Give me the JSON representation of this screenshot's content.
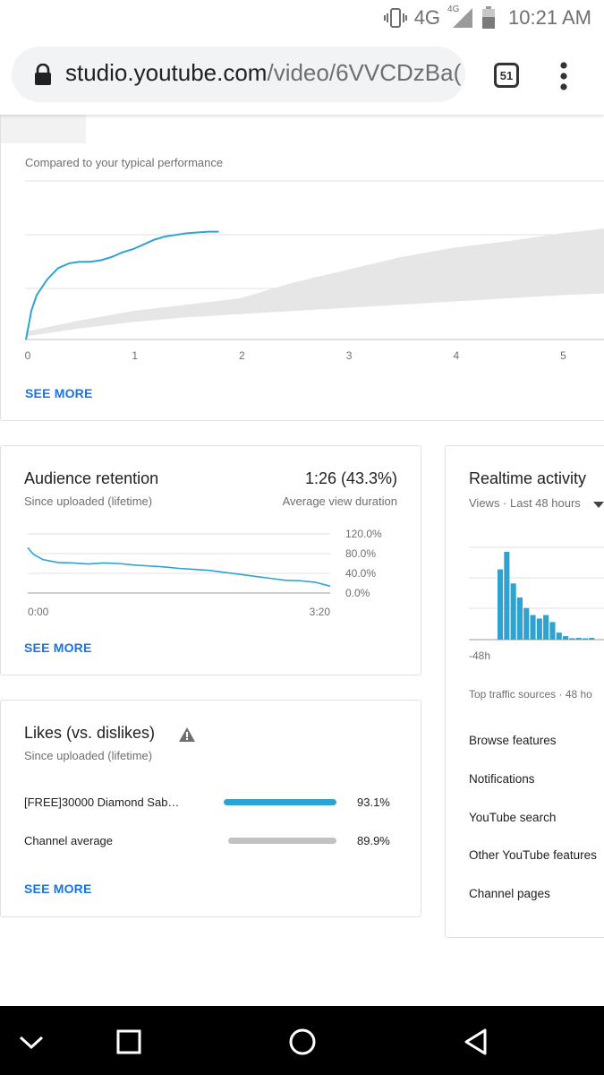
{
  "status_bar": {
    "network": "4G",
    "network_small": "4G",
    "time": "10:21 AM"
  },
  "browser": {
    "url_host": "studio.youtube.com",
    "url_path": "/video/6VVCDzBa(",
    "tab_count": "51"
  },
  "performance_card": {
    "subtitle": "Compared to your typical performance",
    "x_ticks": [
      "0",
      "1",
      "2",
      "3",
      "4",
      "5"
    ],
    "see_more": "SEE MORE"
  },
  "retention_card": {
    "title": "Audience retention",
    "subtitle": "Since uploaded (lifetime)",
    "value": "1:26 (43.3%)",
    "value_caption": "Average view duration",
    "y_ticks": [
      "120.0%",
      "80.0%",
      "40.0%",
      "0.0%"
    ],
    "x_start": "0:00",
    "x_end": "3:20",
    "see_more": "SEE MORE"
  },
  "likes_card": {
    "title": "Likes (vs. dislikes)",
    "warning_icon": "warning-icon",
    "subtitle": "Since uploaded (lifetime)",
    "rows": [
      {
        "label": "[FREE]30000 Diamond Sab…",
        "percent": "93.1%",
        "fill": 0.931,
        "color": "#2ea3d2"
      },
      {
        "label": "Channel average",
        "percent": "89.9%",
        "fill": 0.899,
        "color": "#c2c2c2"
      }
    ],
    "see_more": "SEE MORE"
  },
  "realtime_card": {
    "title": "Realtime activity",
    "subtitle": "Views · Last 48 hours",
    "x_start": "-48h",
    "traffic_title": "Top traffic sources · 48 ho",
    "traffic_sources": [
      "Browse features",
      "Notifications",
      "YouTube search",
      "Other YouTube features",
      "Channel pages"
    ]
  },
  "colors": {
    "accent": "#1a73e8",
    "series": "#2ea3d2",
    "band": "#e6e6e6"
  },
  "chart_data": [
    {
      "type": "line",
      "title": "",
      "subtitle": "Compared to your typical performance",
      "xlabel": "",
      "ylabel": "",
      "xlim": [
        0,
        5.4
      ],
      "x_ticks": [
        "0",
        "1",
        "2",
        "3",
        "4",
        "5"
      ],
      "series": [
        {
          "x": [
            0,
            0.05,
            0.1,
            0.2,
            0.3,
            0.4,
            0.5,
            0.6,
            0.7,
            0.8,
            0.9,
            1.0,
            1.1,
            1.2,
            1.3,
            1.4,
            1.5,
            1.6,
            1.7,
            1.8
          ],
          "y": [
            0,
            0.18,
            0.28,
            0.38,
            0.45,
            0.48,
            0.49,
            0.49,
            0.5,
            0.52,
            0.55,
            0.57,
            0.6,
            0.63,
            0.65,
            0.66,
            0.67,
            0.675,
            0.68,
            0.68
          ]
        }
      ],
      "band": {
        "x": [
          0,
          0.5,
          1,
          1.5,
          2,
          2.5,
          3,
          3.5,
          4,
          4.5,
          5,
          5.4
        ],
        "upper": [
          0.05,
          0.12,
          0.18,
          0.22,
          0.26,
          0.36,
          0.44,
          0.52,
          0.58,
          0.62,
          0.67,
          0.7
        ],
        "lower": [
          0.02,
          0.07,
          0.11,
          0.14,
          0.16,
          0.18,
          0.2,
          0.22,
          0.24,
          0.26,
          0.28,
          0.29
        ]
      }
    },
    {
      "type": "line",
      "title": "Audience retention",
      "xlabel": "",
      "ylabel": "",
      "x_range": [
        "0:00",
        "3:20"
      ],
      "ylim": [
        0,
        120
      ],
      "y_ticks": [
        "120.0%",
        "80.0%",
        "40.0%",
        "0.0%"
      ],
      "series": [
        {
          "x": [
            0,
            0.02,
            0.05,
            0.1,
            0.15,
            0.2,
            0.25,
            0.3,
            0.35,
            0.4,
            0.45,
            0.5,
            0.55,
            0.6,
            0.65,
            0.7,
            0.75,
            0.8,
            0.85,
            0.9,
            0.95,
            1.0
          ],
          "y": [
            92,
            78,
            68,
            62,
            61,
            59,
            61,
            60,
            57,
            55,
            53,
            50,
            48,
            46,
            42,
            38,
            34,
            30,
            26,
            25,
            22,
            14
          ]
        }
      ]
    },
    {
      "type": "bar",
      "title": "Realtime activity",
      "x_start": "-48h",
      "values": [
        0,
        0,
        0,
        0,
        0,
        0,
        0,
        0,
        0,
        0,
        0,
        0,
        0,
        0,
        0,
        0,
        0,
        0,
        0,
        0,
        0,
        0,
        0,
        0,
        0,
        0,
        0,
        0,
        0,
        0,
        0,
        0,
        0,
        0,
        0,
        0,
        20,
        25,
        16,
        12,
        9,
        7,
        6,
        7,
        5,
        2,
        1,
        0.4,
        0.5,
        0.3,
        0.5
      ]
    }
  ]
}
